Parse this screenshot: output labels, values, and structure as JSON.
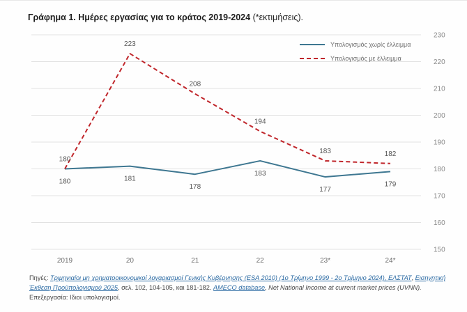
{
  "title": {
    "bold": "Γράφημα 1. Ημέρες εργασίας για το κράτος 2019-2024",
    "rest": "(*εκτιμήσεις)."
  },
  "colors": {
    "series_without_deficit": "#3e7791",
    "series_with_deficit": "#c0262b",
    "grid": "#d9d9d9"
  },
  "source": {
    "prefix": "Πηγές:",
    "link1": "Τριμηνιαίοι μη χρηματοοικονομικοί λογαριασμοί Γενικής Κυβέρνησης (ESA 2010) (1ο Τρίμηνο 1999 - 2ο Τρίμηνο 2024), ΕΛΣΤΑΤ",
    "sep1": ",",
    "link2": "Εισηγητική Έκθεση Προϋπολογισμού 2025",
    "mid": ", σελ. 102, 104-105, και 181-182.",
    "link3": "AMECO database",
    "italic": ", Net National Income at current market prices (UVNN).",
    "end": "Επεξεργασία: Ιδιοι υπολογισμοί."
  },
  "chart_data": {
    "type": "line",
    "categories": [
      "2019",
      "20",
      "21",
      "22",
      "23*",
      "24*"
    ],
    "series": [
      {
        "name": "Υπολογισμός χωρίς έλλειμμα",
        "values": [
          180,
          181,
          178,
          183,
          177,
          179
        ],
        "style": "solid"
      },
      {
        "name": "Υπολογισμός με έλλειμμα",
        "values": [
          180,
          223,
          208,
          194,
          183,
          182
        ],
        "style": "dashed"
      }
    ],
    "ylim": [
      150,
      230
    ],
    "yticks": [
      "150",
      "160",
      "170",
      "180",
      "190",
      "200",
      "210",
      "220",
      "230"
    ],
    "y_axis_side": "right",
    "grid": true,
    "legend": "top-right",
    "labels_without_deficit": [
      "180",
      "181",
      "178",
      "183",
      "177",
      "179"
    ],
    "labels_with_deficit": [
      "180",
      "223",
      "208",
      "194",
      "183",
      "182"
    ]
  }
}
